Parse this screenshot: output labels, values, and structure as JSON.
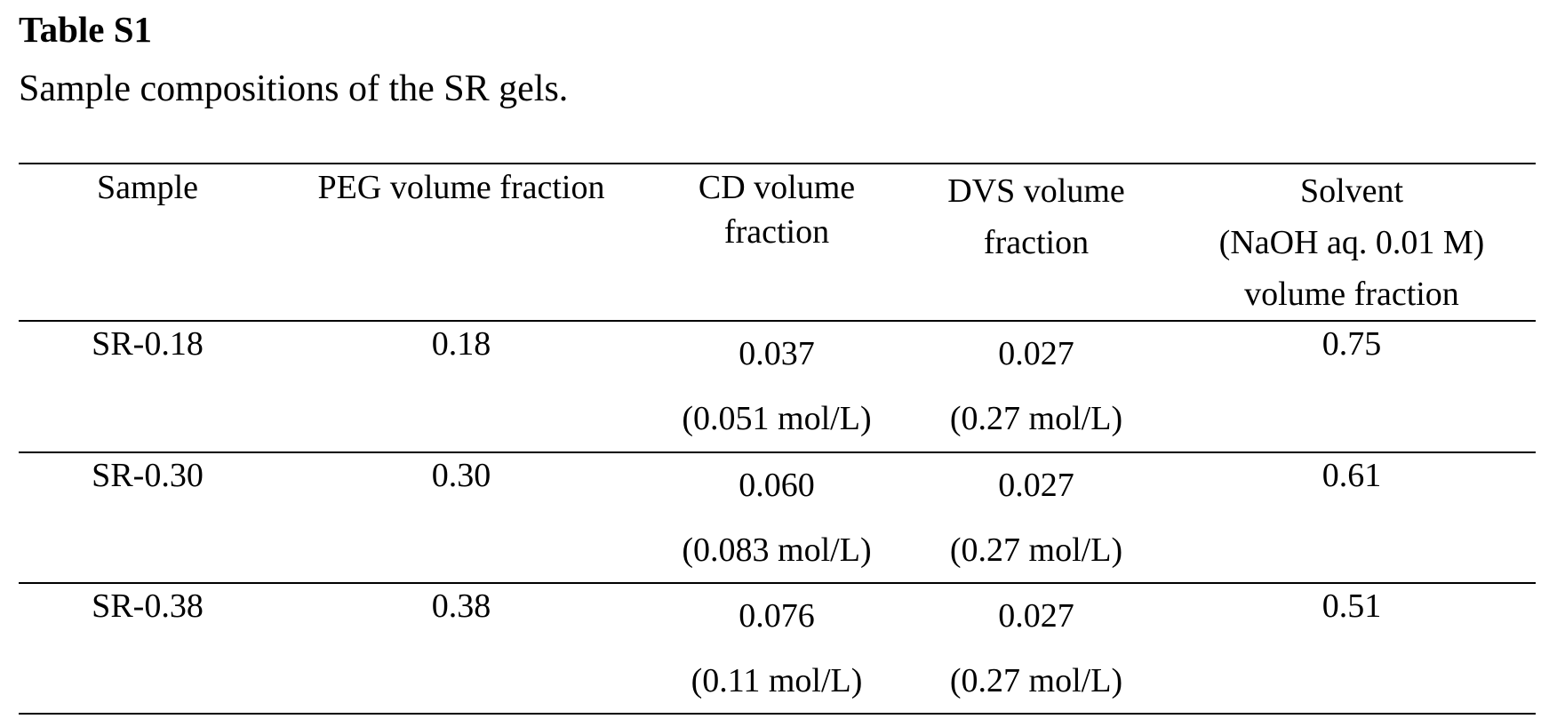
{
  "caption": {
    "title": "Table S1",
    "description": "Sample compositions of the SR gels."
  },
  "table": {
    "headers": {
      "sample": "Sample",
      "peg": "PEG volume fraction",
      "cd": [
        "CD volume",
        "fraction"
      ],
      "dvs": [
        "DVS volume",
        "fraction"
      ],
      "solvent": [
        "Solvent",
        "(NaOH aq. 0.01 M)",
        "volume fraction"
      ]
    },
    "rows": [
      {
        "sample": "SR-0.18",
        "peg": "0.18",
        "cd": "0.037",
        "cd_conc": "(0.051 mol/L)",
        "dvs": "0.027",
        "dvs_conc": "(0.27 mol/L)",
        "solvent": "0.75"
      },
      {
        "sample": "SR-0.30",
        "peg": "0.30",
        "cd": "0.060",
        "cd_conc": "(0.083 mol/L)",
        "dvs": "0.027",
        "dvs_conc": "(0.27 mol/L)",
        "solvent": "0.61"
      },
      {
        "sample": "SR-0.38",
        "peg": "0.38",
        "cd": "0.076",
        "cd_conc": "(0.11 mol/L)",
        "dvs": "0.027",
        "dvs_conc": "(0.27 mol/L)",
        "solvent": "0.51"
      }
    ]
  }
}
